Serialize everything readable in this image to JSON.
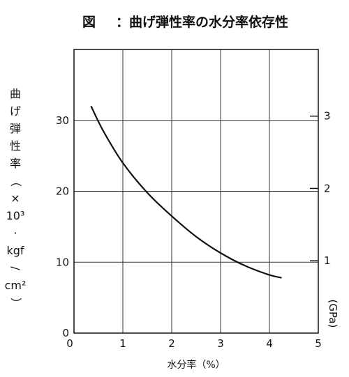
{
  "chart_data": {
    "type": "line",
    "title_prefix": "図",
    "title": "：曲げ弾性率の水分率依存性",
    "xlabel": "水分率（%）",
    "ylabel_chars": [
      "曲",
      "げ",
      "弾",
      "性",
      "率",
      "（",
      "×",
      "10³",
      "·",
      "kgf",
      "/",
      "cm²",
      "）"
    ],
    "right_axis_label": "(GPa)",
    "xlim": [
      0,
      5
    ],
    "ylim": [
      0,
      40
    ],
    "x_ticks": [
      "0",
      "1",
      "2",
      "3",
      "4",
      "5"
    ],
    "y_ticks": [
      "0",
      "10",
      "20",
      "30"
    ],
    "right_ticks": [
      "1",
      "2",
      "3"
    ],
    "grid": true,
    "series": [
      {
        "x": [
          0.35,
          0.6,
          1.0,
          1.5,
          2.0,
          2.5,
          3.0,
          3.5,
          4.0,
          4.25
        ],
        "y": [
          32,
          28.5,
          24,
          19.8,
          16.5,
          13.6,
          11.3,
          9.5,
          8.2,
          7.8
        ]
      }
    ],
    "colors": {
      "line": "#111111",
      "grid": "#333333",
      "background": "#ffffff"
    }
  }
}
